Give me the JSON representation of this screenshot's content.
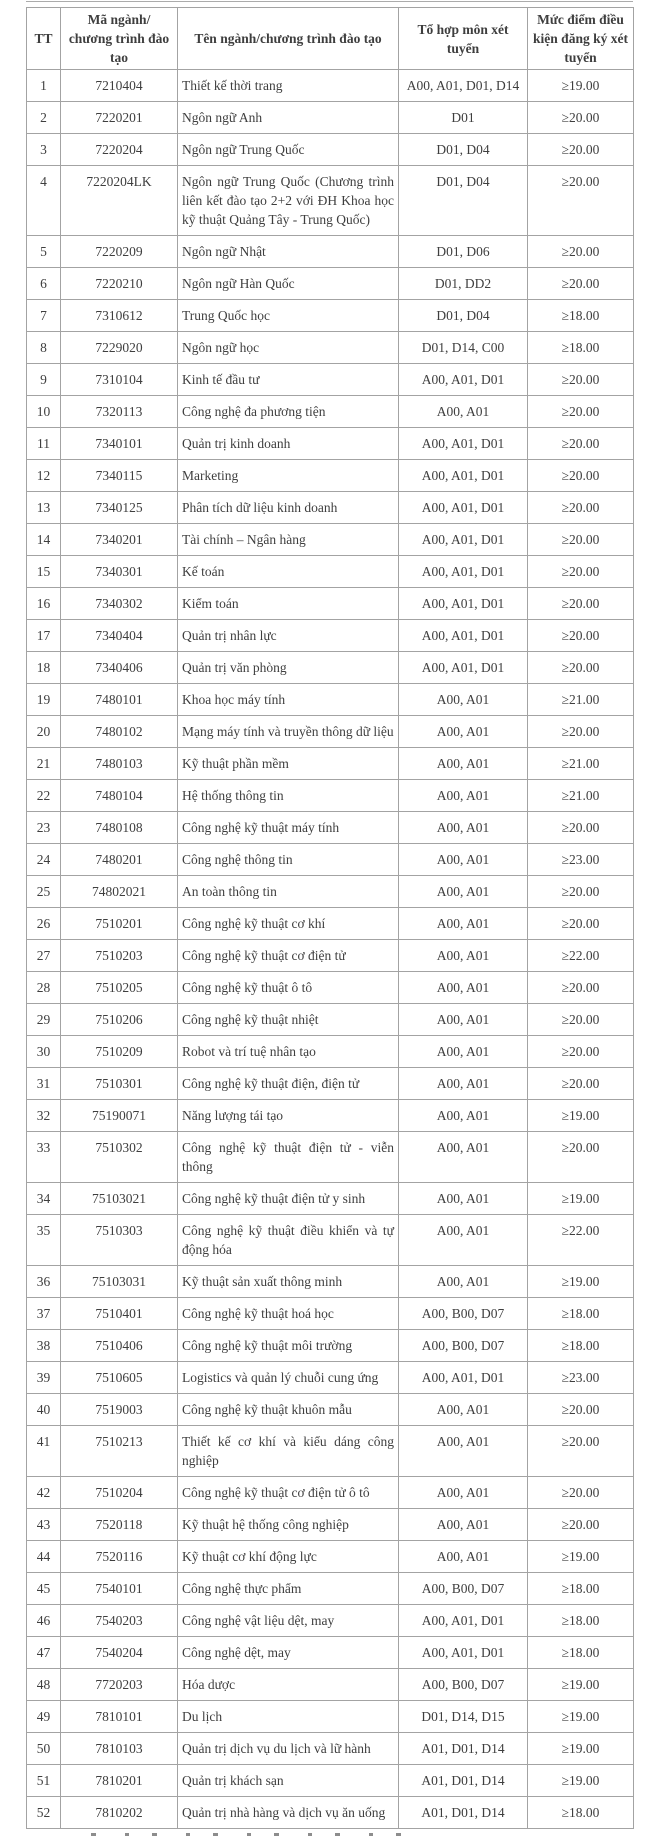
{
  "page": {
    "background": "#ffffff",
    "text_color": "#3e3e3e",
    "border_color": "#a3a3a3"
  },
  "table": {
    "columns": [
      {
        "key": "tt",
        "label": "TT"
      },
      {
        "key": "code",
        "label": "Mã ngành/ chương trình đào tạo"
      },
      {
        "key": "name",
        "label": "Tên ngành/chương trình đào tạo"
      },
      {
        "key": "combos",
        "label": "Tổ hợp môn xét tuyển"
      },
      {
        "key": "score",
        "label": "Mức điểm điều kiện đăng ký xét tuyển"
      }
    ],
    "rows": [
      {
        "tt": "1",
        "code": "7210404",
        "name": "Thiết kế thời trang",
        "combos": "A00, A01, D01, D14",
        "score": "≥19.00"
      },
      {
        "tt": "2",
        "code": "7220201",
        "name": "Ngôn ngữ Anh",
        "combos": "D01",
        "score": "≥20.00"
      },
      {
        "tt": "3",
        "code": "7220204",
        "name": "Ngôn ngữ Trung Quốc",
        "combos": "D01, D04",
        "score": "≥20.00"
      },
      {
        "tt": "4",
        "code": "7220204LK",
        "name": "Ngôn ngữ Trung Quốc (Chương trình liên kết đào tạo 2+2 với ĐH Khoa học kỹ thuật Quảng Tây - Trung Quốc)",
        "combos": "D01, D04",
        "score": "≥20.00"
      },
      {
        "tt": "5",
        "code": "7220209",
        "name": "Ngôn ngữ Nhật",
        "combos": "D01, D06",
        "score": "≥20.00"
      },
      {
        "tt": "6",
        "code": "7220210",
        "name": "Ngôn ngữ Hàn Quốc",
        "combos": "D01, DD2",
        "score": "≥20.00"
      },
      {
        "tt": "7",
        "code": "7310612",
        "name": "Trung Quốc học",
        "combos": "D01, D04",
        "score": "≥18.00"
      },
      {
        "tt": "8",
        "code": "7229020",
        "name": "Ngôn ngữ học",
        "combos": "D01, D14, C00",
        "score": "≥18.00"
      },
      {
        "tt": "9",
        "code": "7310104",
        "name": "Kinh tế đầu tư",
        "combos": "A00, A01, D01",
        "score": "≥20.00"
      },
      {
        "tt": "10",
        "code": "7320113",
        "name": "Công nghệ đa phương tiện",
        "combos": "A00, A01",
        "score": "≥20.00"
      },
      {
        "tt": "11",
        "code": "7340101",
        "name": "Quản trị kinh doanh",
        "combos": "A00, A01, D01",
        "score": "≥20.00"
      },
      {
        "tt": "12",
        "code": "7340115",
        "name": "Marketing",
        "combos": "A00, A01, D01",
        "score": "≥20.00"
      },
      {
        "tt": "13",
        "code": "7340125",
        "name": "Phân tích dữ liệu kinh doanh",
        "combos": "A00, A01, D01",
        "score": "≥20.00"
      },
      {
        "tt": "14",
        "code": "7340201",
        "name": "Tài chính – Ngân hàng",
        "combos": "A00, A01, D01",
        "score": "≥20.00"
      },
      {
        "tt": "15",
        "code": "7340301",
        "name": "Kế toán",
        "combos": "A00, A01, D01",
        "score": "≥20.00"
      },
      {
        "tt": "16",
        "code": "7340302",
        "name": "Kiểm toán",
        "combos": "A00, A01, D01",
        "score": "≥20.00"
      },
      {
        "tt": "17",
        "code": "7340404",
        "name": "Quản trị nhân lực",
        "combos": "A00, A01, D01",
        "score": "≥20.00"
      },
      {
        "tt": "18",
        "code": "7340406",
        "name": "Quản trị văn phòng",
        "combos": "A00, A01, D01",
        "score": "≥20.00"
      },
      {
        "tt": "19",
        "code": "7480101",
        "name": "Khoa học máy tính",
        "combos": "A00, A01",
        "score": "≥21.00"
      },
      {
        "tt": "20",
        "code": "7480102",
        "name": "Mạng máy tính và truyền thông dữ liệu",
        "combos": "A00, A01",
        "score": "≥20.00"
      },
      {
        "tt": "21",
        "code": "7480103",
        "name": "Kỹ thuật phần mềm",
        "combos": "A00, A01",
        "score": "≥21.00"
      },
      {
        "tt": "22",
        "code": "7480104",
        "name": "Hệ thống thông tin",
        "combos": "A00, A01",
        "score": "≥21.00"
      },
      {
        "tt": "23",
        "code": "7480108",
        "name": "Công nghệ kỹ thuật máy tính",
        "combos": "A00, A01",
        "score": "≥20.00"
      },
      {
        "tt": "24",
        "code": "7480201",
        "name": "Công nghệ thông tin",
        "combos": "A00, A01",
        "score": "≥23.00"
      },
      {
        "tt": "25",
        "code": "74802021",
        "name": "An toàn thông tin",
        "combos": "A00, A01",
        "score": "≥20.00"
      },
      {
        "tt": "26",
        "code": "7510201",
        "name": "Công nghệ kỹ thuật cơ khí",
        "combos": "A00, A01",
        "score": "≥20.00"
      },
      {
        "tt": "27",
        "code": "7510203",
        "name": "Công nghệ kỹ thuật cơ điện tử",
        "combos": "A00, A01",
        "score": "≥22.00"
      },
      {
        "tt": "28",
        "code": "7510205",
        "name": "Công nghệ kỹ thuật ô tô",
        "combos": "A00, A01",
        "score": "≥20.00"
      },
      {
        "tt": "29",
        "code": "7510206",
        "name": "Công nghệ kỹ thuật nhiệt",
        "combos": "A00, A01",
        "score": "≥20.00"
      },
      {
        "tt": "30",
        "code": "7510209",
        "name": "Robot và trí tuệ nhân tạo",
        "combos": "A00, A01",
        "score": "≥20.00"
      },
      {
        "tt": "31",
        "code": "7510301",
        "name": "Công nghệ kỹ thuật điện, điện tử",
        "combos": "A00, A01",
        "score": "≥20.00"
      },
      {
        "tt": "32",
        "code": "75190071",
        "name": "Năng lượng tái tạo",
        "combos": "A00, A01",
        "score": "≥19.00"
      },
      {
        "tt": "33",
        "code": "7510302",
        "name": "Công nghệ kỹ thuật điện tử - viễn thông",
        "combos": "A00, A01",
        "score": "≥20.00"
      },
      {
        "tt": "34",
        "code": "75103021",
        "name": "Công nghệ kỹ thuật điện tử y sinh",
        "combos": "A00, A01",
        "score": "≥19.00"
      },
      {
        "tt": "35",
        "code": "7510303",
        "name": "Công nghệ kỹ thuật điều khiển và tự động hóa",
        "combos": "A00, A01",
        "score": "≥22.00"
      },
      {
        "tt": "36",
        "code": "75103031",
        "name": "Kỹ thuật sản xuất thông minh",
        "combos": "A00, A01",
        "score": "≥19.00"
      },
      {
        "tt": "37",
        "code": "7510401",
        "name": "Công nghệ kỹ thuật hoá học",
        "combos": "A00, B00, D07",
        "score": "≥18.00"
      },
      {
        "tt": "38",
        "code": "7510406",
        "name": "Công nghệ kỹ thuật môi trường",
        "combos": "A00, B00, D07",
        "score": "≥18.00"
      },
      {
        "tt": "39",
        "code": "7510605",
        "name": "Logistics và quản lý chuỗi cung ứng",
        "combos": "A00, A01, D01",
        "score": "≥23.00"
      },
      {
        "tt": "40",
        "code": "7519003",
        "name": "Công nghệ kỹ thuật khuôn mẫu",
        "combos": "A00, A01",
        "score": "≥20.00"
      },
      {
        "tt": "41",
        "code": "7510213",
        "name": "Thiết kế cơ khí và kiểu dáng công nghiệp",
        "combos": "A00, A01",
        "score": "≥20.00"
      },
      {
        "tt": "42",
        "code": "7510204",
        "name": "Công nghệ kỹ thuật cơ điện tử ô tô",
        "combos": "A00, A01",
        "score": "≥20.00"
      },
      {
        "tt": "43",
        "code": "7520118",
        "name": "Kỹ thuật hệ thống công nghiệp",
        "combos": "A00, A01",
        "score": "≥20.00"
      },
      {
        "tt": "44",
        "code": "7520116",
        "name": "Kỹ thuật cơ khí động lực",
        "combos": "A00, A01",
        "score": "≥19.00"
      },
      {
        "tt": "45",
        "code": "7540101",
        "name": "Công nghệ thực phẩm",
        "combos": "A00, B00, D07",
        "score": "≥18.00"
      },
      {
        "tt": "46",
        "code": "7540203",
        "name": "Công nghệ vật liệu dệt, may",
        "combos": "A00, A01, D01",
        "score": "≥18.00"
      },
      {
        "tt": "47",
        "code": "7540204",
        "name": "Công nghệ dệt, may",
        "combos": "A00, A01, D01",
        "score": "≥18.00"
      },
      {
        "tt": "48",
        "code": "7720203",
        "name": "Hóa dược",
        "combos": "A00, B00, D07",
        "score": "≥19.00"
      },
      {
        "tt": "49",
        "code": "7810101",
        "name": "Du lịch",
        "combos": "D01, D14, D15",
        "score": "≥19.00"
      },
      {
        "tt": "50",
        "code": "7810103",
        "name": "Quản trị dịch vụ du lịch và lữ hành",
        "combos": "A01, D01, D14",
        "score": "≥19.00"
      },
      {
        "tt": "51",
        "code": "7810201",
        "name": "Quản trị khách sạn",
        "combos": "A01, D01, D14",
        "score": "≥19.00"
      },
      {
        "tt": "52",
        "code": "7810202",
        "name": "Quản trị nhà hàng và dịch vụ ăn uống",
        "combos": "A01, D01, D14",
        "score": "≥18.00"
      }
    ]
  }
}
